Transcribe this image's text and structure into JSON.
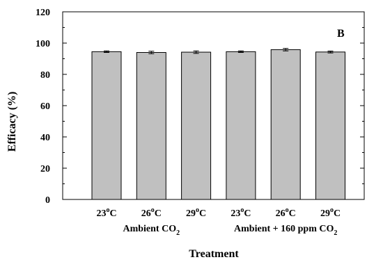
{
  "chart_data": {
    "type": "bar",
    "panel_label": "B",
    "categories": [
      "23°C",
      "26°C",
      "29°C",
      "23°C",
      "26°C",
      "29°C"
    ],
    "category_labels": [
      {
        "base": "23",
        "sup": "o",
        "unit": "C"
      },
      {
        "base": "26",
        "sup": "o",
        "unit": "C"
      },
      {
        "base": "29",
        "sup": "o",
        "unit": "C"
      },
      {
        "base": "23",
        "sup": "o",
        "unit": "C"
      },
      {
        "base": "26",
        "sup": "o",
        "unit": "C"
      },
      {
        "base": "29",
        "sup": "o",
        "unit": "C"
      }
    ],
    "values": [
      94.5,
      94.0,
      94.2,
      94.5,
      95.8,
      94.3
    ],
    "errors": [
      0.5,
      0.8,
      0.8,
      0.5,
      0.8,
      0.6
    ],
    "groups": [
      {
        "label": "Ambient CO",
        "subscript": "2"
      },
      {
        "label": "Ambient + 160 ppm CO",
        "subscript": "2"
      }
    ],
    "xlabel": "Treatment",
    "ylabel": "Efficacy (%)",
    "ylim": [
      0,
      120
    ],
    "yticks": [
      0,
      20,
      40,
      60,
      80,
      100,
      120
    ],
    "grid": false,
    "bar_color": "#c0c0c0",
    "edge_color": "#000000"
  }
}
